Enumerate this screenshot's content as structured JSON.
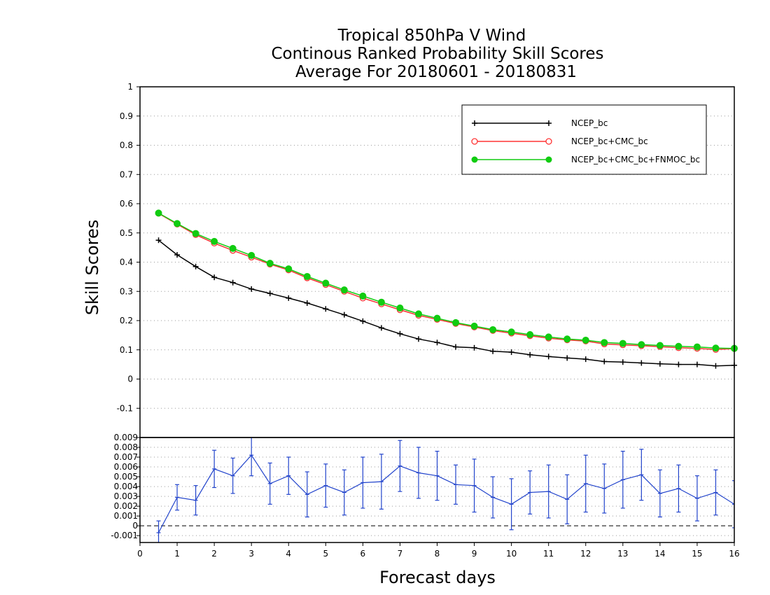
{
  "chart_data": {
    "type": "line",
    "title_lines": [
      "Tropical 850hPa V Wind",
      "Continous Ranked Probability Skill Scores",
      "Average For 20180601 - 20180831"
    ],
    "xlabel": "Forecast days",
    "xlim": [
      0,
      16
    ],
    "x_ticks": [
      "0",
      "1",
      "2",
      "3",
      "4",
      "5",
      "6",
      "7",
      "8",
      "9",
      "10",
      "11",
      "12",
      "13",
      "14",
      "15",
      "16"
    ],
    "x": [
      0.5,
      1,
      1.5,
      2,
      2.5,
      3,
      3.5,
      4,
      4.5,
      5,
      5.5,
      6,
      6.5,
      7,
      7.5,
      8,
      8.5,
      9,
      9.5,
      10,
      10.5,
      11,
      11.5,
      12,
      12.5,
      13,
      13.5,
      14,
      14.5,
      15,
      15.5,
      16
    ],
    "grid": true,
    "legend_position": "top-right",
    "main_panel": {
      "ylabel": "Skill Scores",
      "ylim": [
        -0.2,
        1.0
      ],
      "y_ticks": [
        "1",
        "0.9",
        "0.8",
        "0.7",
        "0.6",
        "0.5",
        "0.4",
        "0.3",
        "0.2",
        "0.1",
        "0",
        "-0.1"
      ],
      "series": [
        {
          "name": "NCEP_bc",
          "color": "#000000",
          "marker": "plus",
          "values": [
            0.475,
            0.425,
            0.385,
            0.348,
            0.33,
            0.308,
            0.293,
            0.277,
            0.26,
            0.24,
            0.22,
            0.198,
            0.175,
            0.155,
            0.137,
            0.125,
            0.11,
            0.107,
            0.095,
            0.092,
            0.083,
            0.077,
            0.072,
            0.068,
            0.06,
            0.058,
            0.055,
            0.052,
            0.05,
            0.05,
            0.045,
            0.047
          ]
        },
        {
          "name": "NCEP_bc+CMC_bc",
          "color": "#ff3333",
          "marker": "open-circle",
          "values": [
            0.567,
            0.53,
            0.494,
            0.465,
            0.44,
            0.417,
            0.393,
            0.373,
            0.346,
            0.323,
            0.3,
            0.277,
            0.257,
            0.237,
            0.218,
            0.204,
            0.19,
            0.178,
            0.166,
            0.157,
            0.148,
            0.14,
            0.134,
            0.13,
            0.12,
            0.117,
            0.114,
            0.111,
            0.107,
            0.105,
            0.101,
            0.104
          ]
        },
        {
          "name": "NCEP_bc+CMC_bc+FNMOC_bc",
          "color": "#11cc11",
          "marker": "filled-circle",
          "values": [
            0.568,
            0.532,
            0.498,
            0.471,
            0.447,
            0.423,
            0.396,
            0.377,
            0.351,
            0.328,
            0.305,
            0.284,
            0.263,
            0.243,
            0.223,
            0.208,
            0.193,
            0.181,
            0.169,
            0.161,
            0.152,
            0.144,
            0.137,
            0.133,
            0.125,
            0.122,
            0.118,
            0.115,
            0.112,
            0.11,
            0.106,
            0.105
          ]
        }
      ]
    },
    "diff_panel": {
      "ylim": [
        -0.0017,
        0.009
      ],
      "y_ticks": [
        "0.009",
        "0.008",
        "0.007",
        "0.006",
        "0.005",
        "0.004",
        "0.003",
        "0.002",
        "0.001",
        "0",
        "-0.001"
      ],
      "series": {
        "color": "#2244cc",
        "values": [
          -0.0007,
          0.0029,
          0.0026,
          0.0058,
          0.0051,
          0.0072,
          0.0043,
          0.0051,
          0.0032,
          0.0041,
          0.0034,
          0.0044,
          0.0045,
          0.0061,
          0.0054,
          0.0051,
          0.0042,
          0.0041,
          0.0029,
          0.0022,
          0.0034,
          0.0035,
          0.0027,
          0.0043,
          0.0038,
          0.0047,
          0.0052,
          0.0033,
          0.0038,
          0.0028,
          0.0034,
          0.0022
        ],
        "errors": [
          0.0012,
          0.0013,
          0.0015,
          0.0019,
          0.0018,
          0.0021,
          0.0021,
          0.0019,
          0.0023,
          0.0022,
          0.0023,
          0.0026,
          0.0028,
          0.0026,
          0.0026,
          0.0025,
          0.002,
          0.0027,
          0.0021,
          0.0026,
          0.0022,
          0.0027,
          0.0025,
          0.0029,
          0.0025,
          0.0029,
          0.0026,
          0.0024,
          0.0024,
          0.0023,
          0.0023,
          0.0024
        ]
      }
    }
  }
}
